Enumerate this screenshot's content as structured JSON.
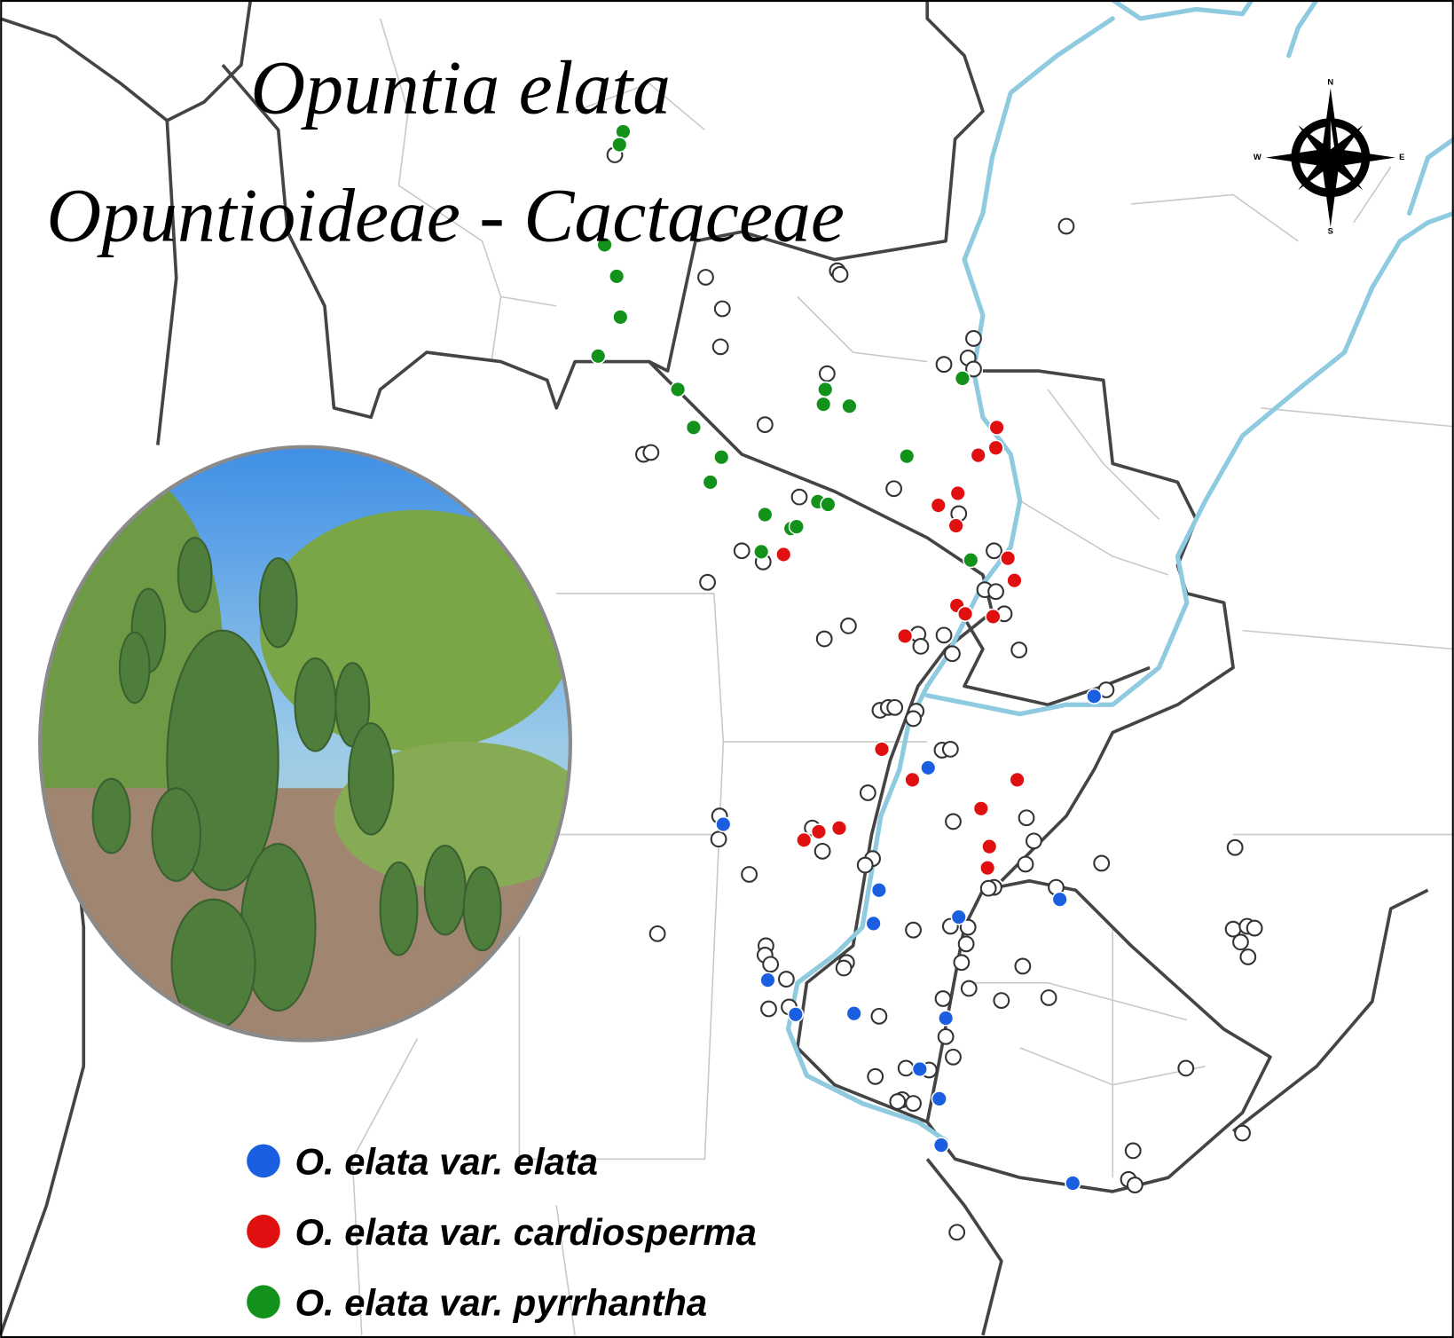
{
  "title": {
    "line1": "Opuntia elata",
    "line2": "Opuntioideae - Cactaceae"
  },
  "compass": {
    "n": "N",
    "s": "S",
    "e": "E",
    "w": "W"
  },
  "legend": [
    {
      "label": "O. elata var. elata",
      "color": "#1a5fe0"
    },
    {
      "label": "O. elata var. cardiosperma",
      "color": "#e01010"
    },
    {
      "label": "O. elata var. pyrrhantha",
      "color": "#12921a"
    }
  ]
}
